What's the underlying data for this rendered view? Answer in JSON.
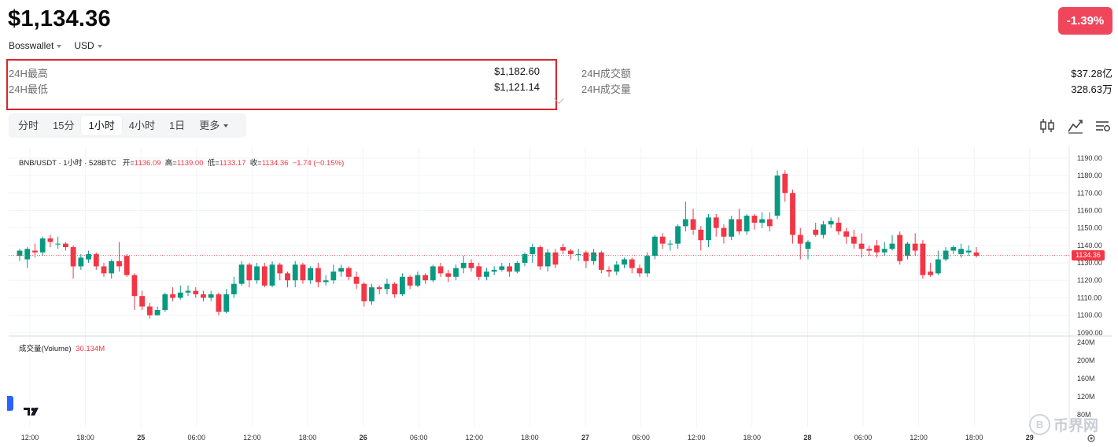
{
  "header": {
    "price": "$1,134.36",
    "change": "-1.39%",
    "source_label": "Bosswallet",
    "currency_label": "USD"
  },
  "stats": {
    "high_label": "24H最高",
    "high_value": "$1,182.60",
    "low_label": "24H最低",
    "low_value": "$1,121.14",
    "turnover_label": "24H成交额",
    "turnover_value": "$37.28亿",
    "volume_label": "24H成交量",
    "volume_value": "328.63万"
  },
  "tabs": [
    {
      "label": "分时",
      "active": false
    },
    {
      "label": "15分",
      "active": false
    },
    {
      "label": "1小时",
      "active": true
    },
    {
      "label": "4小时",
      "active": false
    },
    {
      "label": "1日",
      "active": false
    },
    {
      "label": "更多",
      "active": false
    }
  ],
  "toolbar": [
    "candlestick-icon",
    "line-chart-icon",
    "indicator-settings-icon"
  ],
  "legend": {
    "symbol": "BNB/USDT · 1小时 · 528BTC",
    "open_label": "开=",
    "open": "1136.09",
    "high_label": "高=",
    "high": "1139.00",
    "low_label": "低=",
    "low": "1133.17",
    "close_label": "收=",
    "close": "1134.36",
    "change": "−1.74 (−0.15%)"
  },
  "volume_legend": {
    "label": "成交量(Volume)",
    "value": "30.134M"
  },
  "last_price_tag": "1134.36",
  "watermark": "币界网",
  "colors": {
    "up": "#089981",
    "down": "#f23645",
    "badge": "#f0465c",
    "highlight_border": "#d9262a"
  },
  "chart_data": {
    "type": "candlestick",
    "title": "",
    "y_ticks": [
      1090,
      1100,
      1110,
      1120,
      1130,
      1140,
      1150,
      1160,
      1170,
      1180,
      1190
    ],
    "y_tick_labels": [
      "1090.00",
      "1100.00",
      "1110.00",
      "1120.00",
      "1130.00",
      "1140.00",
      "1150.00",
      "1160.00",
      "1170.00",
      "1180.00",
      "1190.00"
    ],
    "ylim": [
      1089,
      1194
    ],
    "volume_ticks": [
      "80M",
      "120M",
      "160M",
      "200M",
      "240M"
    ],
    "x_tick_labels": [
      "12:00",
      "18:00",
      "25",
      "06:00",
      "12:00",
      "18:00",
      "26",
      "06:00",
      "12:00",
      "18:00",
      "27",
      "06:00",
      "12:00",
      "18:00",
      "28",
      "06:00",
      "12:00",
      "18:00",
      "29"
    ],
    "bold_x_ticks": [
      "25",
      "26",
      "27",
      "28",
      "29"
    ],
    "last_price": 1134.36,
    "candles": [
      [
        1134,
        1137,
        1131,
        1138
      ],
      [
        1132,
        1138,
        1127,
        1139
      ],
      [
        1137,
        1136,
        1133,
        1141
      ],
      [
        1136,
        1144,
        1134,
        1145
      ],
      [
        1144,
        1142,
        1139,
        1146
      ],
      [
        1141,
        1141,
        1138,
        1145
      ],
      [
        1141,
        1139,
        1137,
        1142
      ],
      [
        1139,
        1128,
        1121,
        1140
      ],
      [
        1128,
        1133,
        1126,
        1135
      ],
      [
        1132,
        1135,
        1130,
        1137
      ],
      [
        1135,
        1128,
        1126,
        1136
      ],
      [
        1128,
        1124,
        1122,
        1130
      ],
      [
        1124,
        1131,
        1121,
        1132
      ],
      [
        1131,
        1128,
        1125,
        1142
      ],
      [
        1134,
        1123,
        1122,
        1135
      ],
      [
        1123,
        1111,
        1103,
        1124
      ],
      [
        1111,
        1105,
        1103,
        1114
      ],
      [
        1105,
        1100,
        1098,
        1107
      ],
      [
        1100,
        1103,
        1100,
        1105
      ],
      [
        1103,
        1112,
        1102,
        1113
      ],
      [
        1112,
        1110,
        1108,
        1116
      ],
      [
        1110,
        1113,
        1109,
        1117
      ],
      [
        1113,
        1114,
        1111,
        1117
      ],
      [
        1114,
        1112,
        1110,
        1116
      ],
      [
        1112,
        1110,
        1108,
        1114
      ],
      [
        1110,
        1112,
        1108,
        1114
      ],
      [
        1112,
        1102,
        1100,
        1113
      ],
      [
        1102,
        1112,
        1101,
        1115
      ],
      [
        1112,
        1118,
        1110,
        1122
      ],
      [
        1118,
        1129,
        1117,
        1131
      ],
      [
        1129,
        1120,
        1116,
        1130
      ],
      [
        1120,
        1128,
        1118,
        1130
      ],
      [
        1128,
        1117,
        1116,
        1130
      ],
      [
        1117,
        1129,
        1116,
        1131
      ],
      [
        1129,
        1124,
        1120,
        1130
      ],
      [
        1124,
        1120,
        1116,
        1125
      ],
      [
        1120,
        1129,
        1116,
        1131
      ],
      [
        1129,
        1120,
        1118,
        1130
      ],
      [
        1120,
        1127,
        1118,
        1128
      ],
      [
        1127,
        1119,
        1116,
        1130
      ],
      [
        1119,
        1120,
        1117,
        1123
      ],
      [
        1120,
        1125,
        1118,
        1129
      ],
      [
        1125,
        1127,
        1122,
        1129
      ],
      [
        1127,
        1122,
        1120,
        1128
      ],
      [
        1122,
        1118,
        1115,
        1125
      ],
      [
        1118,
        1108,
        1105,
        1119
      ],
      [
        1108,
        1116,
        1106,
        1118
      ],
      [
        1116,
        1115,
        1112,
        1117
      ],
      [
        1115,
        1118,
        1112,
        1121
      ],
      [
        1118,
        1112,
        1110,
        1119
      ],
      [
        1112,
        1122,
        1111,
        1124
      ],
      [
        1122,
        1117,
        1115,
        1123
      ],
      [
        1117,
        1123,
        1116,
        1125
      ],
      [
        1123,
        1120,
        1118,
        1124
      ],
      [
        1120,
        1128,
        1119,
        1129
      ],
      [
        1128,
        1124,
        1122,
        1130
      ],
      [
        1124,
        1122,
        1119,
        1126
      ],
      [
        1122,
        1127,
        1120,
        1129
      ],
      [
        1127,
        1130,
        1124,
        1134
      ],
      [
        1130,
        1127,
        1125,
        1132
      ],
      [
        1128,
        1122,
        1120,
        1130
      ],
      [
        1122,
        1125,
        1120,
        1127
      ],
      [
        1125,
        1126,
        1123,
        1128
      ],
      [
        1126,
        1128,
        1125,
        1130
      ],
      [
        1128,
        1125,
        1122,
        1130
      ],
      [
        1125,
        1130,
        1124,
        1131
      ],
      [
        1130,
        1135,
        1128,
        1136
      ],
      [
        1135,
        1139,
        1130,
        1141
      ],
      [
        1139,
        1128,
        1126,
        1140
      ],
      [
        1128,
        1136,
        1125,
        1138
      ],
      [
        1136,
        1129,
        1127,
        1138
      ],
      [
        1139,
        1137,
        1135,
        1141
      ],
      [
        1137,
        1135,
        1132,
        1138
      ],
      [
        1135,
        1135,
        1131,
        1138
      ],
      [
        1136,
        1131,
        1127,
        1137
      ],
      [
        1131,
        1136,
        1129,
        1138
      ],
      [
        1136,
        1126,
        1124,
        1137
      ],
      [
        1126,
        1125,
        1122,
        1128
      ],
      [
        1125,
        1129,
        1123,
        1131
      ],
      [
        1129,
        1132,
        1127,
        1133
      ],
      [
        1132,
        1127,
        1124,
        1133
      ],
      [
        1127,
        1124,
        1122,
        1129
      ],
      [
        1124,
        1134,
        1122,
        1136
      ],
      [
        1134,
        1145,
        1132,
        1146
      ],
      [
        1145,
        1141,
        1138,
        1147
      ],
      [
        1141,
        1141,
        1137,
        1143
      ],
      [
        1141,
        1151,
        1138,
        1152
      ],
      [
        1151,
        1155,
        1148,
        1165
      ],
      [
        1155,
        1149,
        1146,
        1161
      ],
      [
        1149,
        1143,
        1137,
        1151
      ],
      [
        1143,
        1156,
        1139,
        1158
      ],
      [
        1156,
        1150,
        1145,
        1158
      ],
      [
        1150,
        1145,
        1141,
        1152
      ],
      [
        1145,
        1155,
        1143,
        1157
      ],
      [
        1155,
        1148,
        1146,
        1161
      ],
      [
        1148,
        1157,
        1146,
        1158
      ],
      [
        1157,
        1153,
        1149,
        1158
      ],
      [
        1153,
        1155,
        1150,
        1159
      ],
      [
        1155,
        1151,
        1148,
        1159
      ],
      [
        1157,
        1180,
        1155,
        1183
      ],
      [
        1181,
        1170,
        1165,
        1183
      ],
      [
        1170,
        1146,
        1141,
        1172
      ],
      [
        1146,
        1141,
        1132,
        1150
      ],
      [
        1138,
        1142,
        1132,
        1143
      ],
      [
        1149,
        1146,
        1145,
        1153
      ],
      [
        1146,
        1152,
        1144,
        1154
      ],
      [
        1152,
        1154,
        1150,
        1156
      ],
      [
        1153,
        1148,
        1146,
        1156
      ],
      [
        1148,
        1145,
        1141,
        1150
      ],
      [
        1145,
        1141,
        1138,
        1149
      ],
      [
        1141,
        1138,
        1133,
        1147
      ],
      [
        1138,
        1137,
        1134,
        1140
      ],
      [
        1140,
        1136,
        1133,
        1143
      ],
      [
        1136,
        1138,
        1134,
        1142
      ],
      [
        1138,
        1141,
        1137,
        1146
      ],
      [
        1146,
        1131,
        1129,
        1148
      ],
      [
        1134,
        1141,
        1132,
        1142
      ],
      [
        1141,
        1137,
        1134,
        1147
      ],
      [
        1141,
        1123,
        1121,
        1143
      ],
      [
        1125,
        1123,
        1122,
        1130
      ],
      [
        1124,
        1132,
        1123,
        1137
      ],
      [
        1132,
        1137,
        1131,
        1139
      ],
      [
        1137,
        1139,
        1135,
        1140
      ],
      [
        1135,
        1138,
        1133,
        1141
      ],
      [
        1136,
        1137,
        1134,
        1140
      ],
      [
        1136,
        1134,
        1133,
        1139
      ]
    ]
  }
}
